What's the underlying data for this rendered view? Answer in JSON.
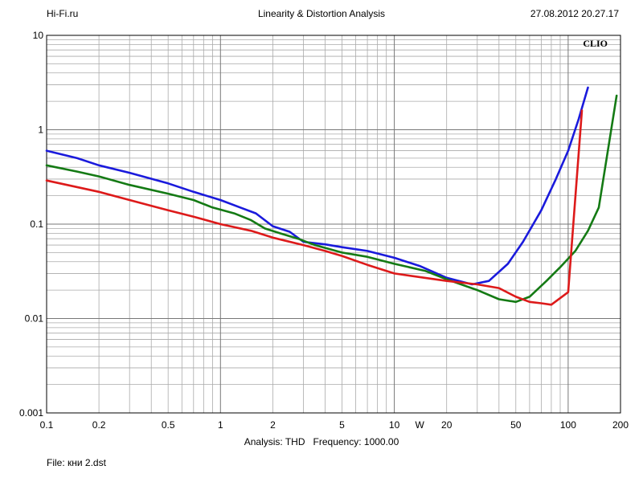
{
  "header": {
    "left": "Hi-Fi.ru",
    "center": "Linearity & Distortion Analysis",
    "right": "27.08.2012 20.27.17"
  },
  "footer": {
    "analysis_label": "Analysis: THD",
    "frequency_label": "Frequency: 1000.00",
    "file": "File: кни 2.dst"
  },
  "chart_data": {
    "type": "line",
    "brand": "CLIO",
    "x_scale": "log",
    "y_scale": "log",
    "xlim": [
      0.1,
      200
    ],
    "ylim": [
      0.001,
      10
    ],
    "x_unit_label": "W",
    "x_ticks": [
      0.1,
      0.2,
      0.5,
      1,
      2,
      5,
      10,
      20,
      50,
      100,
      200
    ],
    "x_tick_labels": [
      "0.1",
      "0.2",
      "0.5",
      "1",
      "2",
      "5",
      "10",
      "20",
      "50",
      "100",
      "200"
    ],
    "y_ticks": [
      10,
      1,
      0.1,
      0.01,
      0.001
    ],
    "y_tick_labels": [
      "10",
      "1",
      "0.1",
      "0.01",
      "0.001"
    ],
    "grid": true,
    "series": [
      {
        "color": "#1a1adc",
        "x": [
          0.1,
          0.15,
          0.2,
          0.3,
          0.5,
          0.7,
          1,
          1.3,
          1.6,
          2,
          2.5,
          3,
          4,
          5,
          7,
          10,
          14,
          20,
          28,
          35,
          45,
          55,
          70,
          85,
          100,
          115,
          130
        ],
        "y": [
          0.6,
          0.5,
          0.42,
          0.35,
          0.27,
          0.22,
          0.18,
          0.15,
          0.13,
          0.095,
          0.083,
          0.065,
          0.061,
          0.057,
          0.052,
          0.044,
          0.036,
          0.027,
          0.023,
          0.025,
          0.038,
          0.065,
          0.14,
          0.3,
          0.6,
          1.3,
          2.8
        ]
      },
      {
        "color": "#147a14",
        "x": [
          0.1,
          0.15,
          0.2,
          0.3,
          0.5,
          0.7,
          0.9,
          1.2,
          1.5,
          1.8,
          2.2,
          2.8,
          3.5,
          5,
          7,
          10,
          15,
          20,
          30,
          40,
          50,
          60,
          75,
          90,
          110,
          130,
          150,
          190
        ],
        "y": [
          0.42,
          0.36,
          0.32,
          0.26,
          0.21,
          0.18,
          0.15,
          0.13,
          0.11,
          0.09,
          0.08,
          0.07,
          0.06,
          0.05,
          0.045,
          0.038,
          0.032,
          0.026,
          0.02,
          0.016,
          0.015,
          0.017,
          0.025,
          0.035,
          0.052,
          0.085,
          0.15,
          2.3
        ]
      },
      {
        "color": "#dd1a1a",
        "x": [
          0.1,
          0.2,
          0.3,
          0.5,
          0.7,
          1,
          1.5,
          2,
          3,
          4,
          5,
          7,
          10,
          20,
          30,
          40,
          50,
          60,
          70,
          80,
          100,
          120
        ],
        "y": [
          0.29,
          0.22,
          0.18,
          0.14,
          0.12,
          0.1,
          0.085,
          0.072,
          0.06,
          0.052,
          0.046,
          0.037,
          0.03,
          0.025,
          0.023,
          0.021,
          0.017,
          0.015,
          0.0145,
          0.014,
          0.019,
          1.6
        ]
      }
    ]
  }
}
